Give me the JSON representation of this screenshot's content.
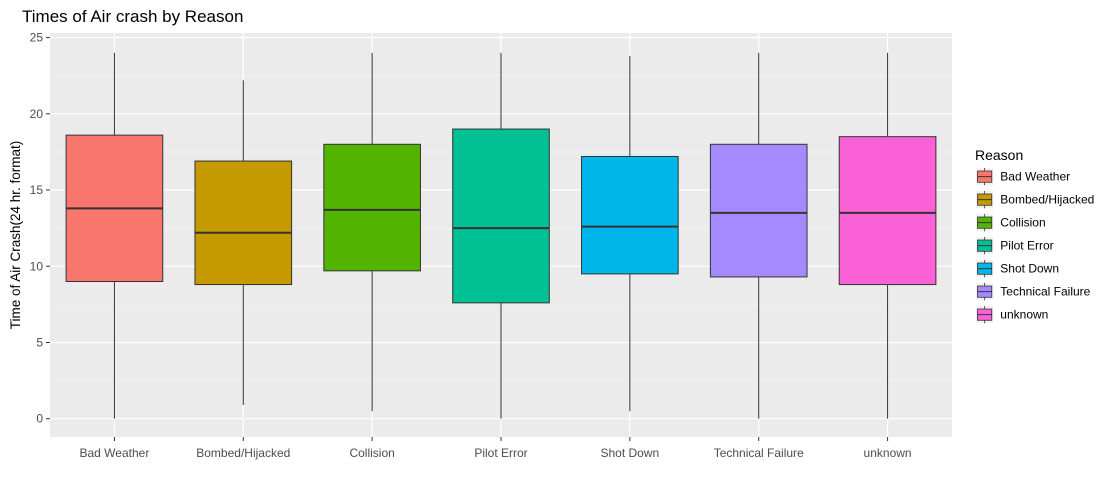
{
  "chart_data": {
    "type": "boxplot",
    "title": "Times of Air crash by Reason",
    "xlabel": "",
    "ylabel": "Time of Air Crash(24 hr. format)",
    "ylim": [
      -1.2,
      25.3
    ],
    "yticks": [
      0,
      5,
      10,
      15,
      20,
      25
    ],
    "grid": true,
    "legend": {
      "title": "Reason",
      "placement": "right"
    },
    "categories": [
      "Bad Weather",
      "Bombed/Hijacked",
      "Collision",
      "Pilot Error",
      "Shot Down",
      "Technical Failure",
      "unknown"
    ],
    "colors": [
      "#F8766D",
      "#C49A00",
      "#53B400",
      "#00C094",
      "#00B6EB",
      "#A58AFF",
      "#FB61D7"
    ],
    "boxes": [
      {
        "min": 0.0,
        "q1": 9.0,
        "median": 13.8,
        "q3": 18.6,
        "max": 24.0
      },
      {
        "min": 0.9,
        "q1": 8.8,
        "median": 12.2,
        "q3": 16.9,
        "max": 22.2
      },
      {
        "min": 0.5,
        "q1": 9.7,
        "median": 13.7,
        "q3": 18.0,
        "max": 24.0
      },
      {
        "min": 0.0,
        "q1": 7.6,
        "median": 12.5,
        "q3": 19.0,
        "max": 24.0
      },
      {
        "min": 0.5,
        "q1": 9.5,
        "median": 12.6,
        "q3": 17.2,
        "max": 23.8
      },
      {
        "min": 0.0,
        "q1": 9.3,
        "median": 13.5,
        "q3": 18.0,
        "max": 24.0
      },
      {
        "min": 0.0,
        "q1": 8.8,
        "median": 13.5,
        "q3": 18.5,
        "max": 24.0
      }
    ]
  }
}
